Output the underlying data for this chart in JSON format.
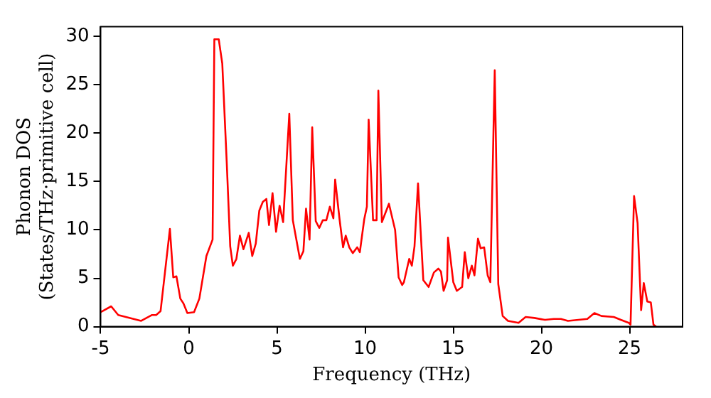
{
  "chart_data": {
    "type": "line",
    "xlabel": "Frequency (THz)",
    "ylabel": "Phonon DOS\n(States/THz·primitive cell)",
    "xlim": [
      -5,
      28
    ],
    "ylim": [
      0,
      31
    ],
    "xticks": [
      -5,
      0,
      5,
      10,
      15,
      20,
      25
    ],
    "yticks": [
      0,
      5,
      10,
      15,
      20,
      25,
      30
    ],
    "grid": false,
    "legend": false,
    "marker": "none",
    "line_style": "solid",
    "series": [
      {
        "color": "#ff0000",
        "x": [
          -5,
          -4.9,
          -4.4,
          -4.0,
          -2.7,
          -2.1,
          -1.85,
          -1.6,
          -1.07,
          -0.88,
          -0.7,
          -0.48,
          -0.3,
          -0.08,
          0.3,
          0.6,
          1.0,
          1.35,
          1.45,
          1.7,
          1.9,
          2.15,
          2.35,
          2.5,
          2.7,
          2.9,
          3.1,
          3.4,
          3.6,
          3.8,
          4.0,
          4.2,
          4.4,
          4.55,
          4.75,
          4.95,
          5.15,
          5.35,
          5.7,
          5.9,
          6.3,
          6.5,
          6.65,
          6.85,
          7.0,
          7.2,
          7.4,
          7.6,
          7.8,
          8.0,
          8.2,
          8.3,
          8.55,
          8.75,
          8.9,
          9.1,
          9.3,
          9.55,
          9.7,
          9.95,
          10.1,
          10.2,
          10.45,
          10.65,
          10.75,
          10.95,
          11.35,
          11.7,
          11.9,
          12.1,
          12.2,
          12.5,
          12.65,
          12.8,
          13.0,
          13.3,
          13.6,
          13.9,
          14.15,
          14.3,
          14.45,
          14.65,
          14.7,
          15.0,
          15.2,
          15.5,
          15.65,
          15.85,
          16.05,
          16.2,
          16.4,
          16.55,
          16.75,
          16.95,
          17.1,
          17.35,
          17.55,
          17.8,
          18.1,
          18.7,
          19.1,
          19.6,
          20.2,
          20.7,
          21.1,
          21.5,
          22.6,
          23.0,
          23.4,
          24.1,
          24.5,
          24.95,
          25.05,
          25.25,
          25.45,
          25.65,
          25.8,
          26.0,
          26.2,
          26.35,
          26.5
        ],
        "values": [
          1.5,
          1.6,
          2.1,
          1.2,
          0.6,
          1.2,
          1.2,
          1.6,
          10.1,
          5.1,
          5.2,
          2.9,
          2.4,
          1.4,
          1.5,
          2.9,
          7.3,
          9.0,
          29.7,
          29.7,
          27.2,
          17.1,
          8.3,
          6.3,
          7.0,
          9.4,
          8.0,
          9.7,
          7.3,
          8.6,
          12.0,
          12.9,
          13.2,
          10.5,
          13.8,
          9.8,
          12.5,
          10.8,
          22.0,
          11.0,
          7.0,
          7.8,
          12.2,
          9.0,
          20.6,
          10.9,
          10.2,
          11.0,
          11.0,
          12.4,
          11.2,
          15.2,
          11.1,
          8.2,
          9.4,
          8.2,
          7.6,
          8.2,
          7.7,
          11.1,
          12.4,
          21.4,
          11.0,
          11.0,
          24.4,
          10.8,
          12.7,
          10.0,
          5.1,
          4.3,
          4.6,
          7.0,
          6.3,
          8.3,
          14.8,
          4.8,
          4.1,
          5.6,
          6.0,
          5.7,
          3.7,
          4.8,
          9.2,
          4.6,
          3.7,
          4.1,
          7.7,
          5.0,
          6.3,
          5.3,
          9.1,
          8.1,
          8.2,
          5.3,
          4.6,
          26.5,
          4.4,
          1.1,
          0.6,
          0.4,
          1.0,
          0.9,
          0.7,
          0.8,
          0.8,
          0.6,
          0.8,
          1.4,
          1.1,
          1.0,
          0.7,
          0.4,
          0.2,
          13.5,
          10.7,
          1.7,
          4.5,
          2.6,
          2.5,
          0.2,
          0
        ]
      }
    ]
  }
}
